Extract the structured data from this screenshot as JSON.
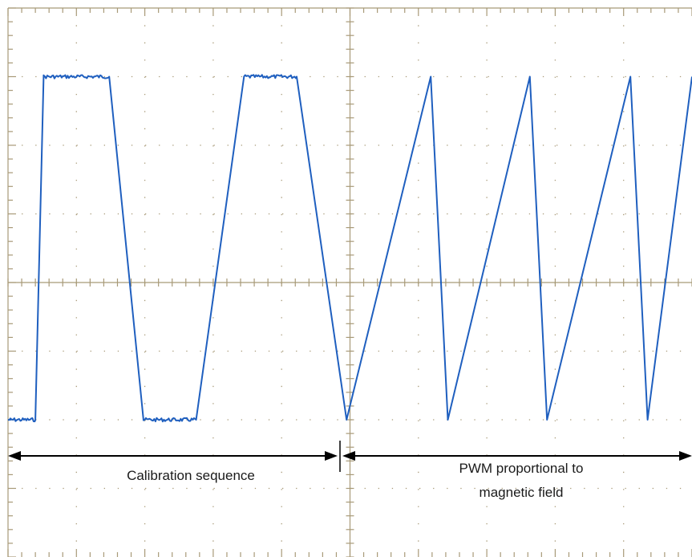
{
  "chart_data": {
    "type": "line",
    "title": "",
    "xlabel": "",
    "ylabel": "",
    "grid": true,
    "xlim": [
      0,
      10
    ],
    "ylim": [
      -4,
      4
    ],
    "logic_levels": {
      "high": 3.0,
      "low": -2.0
    },
    "series": [
      {
        "name": "",
        "color": "#1f5fbf",
        "x": [
          0.0,
          0.04,
          0.04,
          0.4,
          0.4,
          0.52,
          0.52,
          1.48,
          1.48,
          1.98,
          1.98,
          2.75,
          2.75,
          3.45,
          3.45,
          4.22,
          4.22,
          4.95,
          4.95,
          6.18,
          6.18,
          6.43,
          6.43,
          7.63,
          7.63,
          7.88,
          7.88,
          9.1,
          9.1,
          9.35,
          9.35,
          10.0
        ],
        "y": [
          -2.0,
          -2.0,
          -2.0,
          -2.0,
          -2.0,
          3.0,
          3.0,
          3.0,
          3.0,
          -2.0,
          -2.0,
          -2.0,
          -2.0,
          3.0,
          3.0,
          3.0,
          3.0,
          -2.0,
          -2.0,
          3.0,
          3.0,
          -2.0,
          -2.0,
          3.0,
          3.0,
          -2.0,
          -2.0,
          3.0,
          3.0,
          -2.0,
          -2.0,
          3.0
        ]
      }
    ],
    "annotations": [
      {
        "text": "Calibration sequence",
        "x_start": 0.0,
        "x_end": 4.9
      },
      {
        "text_line1": "PWM proportional to",
        "text_line2": "magnetic field",
        "x_start": 4.9,
        "x_end": 10.0
      }
    ]
  },
  "colors": {
    "trace": "#1f5fbf",
    "grid": "#a89a78",
    "background": "#ffffff",
    "arrow": "#000000"
  }
}
